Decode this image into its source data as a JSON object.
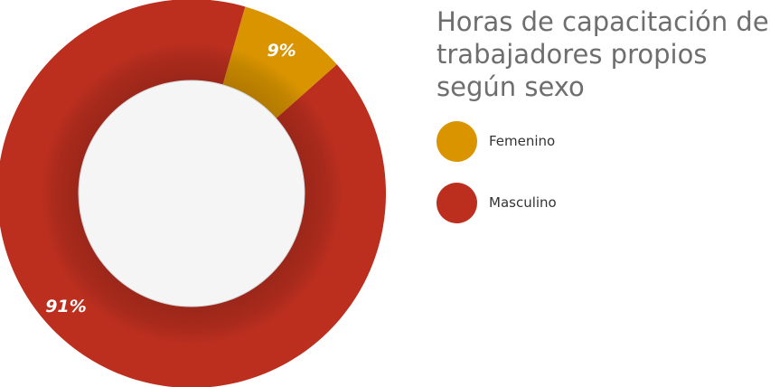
{
  "chart_data": {
    "type": "pie",
    "title": "Horas de capacitación de trabajadores propios según sexo",
    "slices": [
      {
        "name": "Femenino",
        "value": 9,
        "label": "9%",
        "color": "#d99400"
      },
      {
        "name": "Masculino",
        "value": 91,
        "label": "91%",
        "color": "#bc2f1f"
      }
    ],
    "donut": true,
    "legend_position": "right"
  },
  "colors": {
    "inner_circle": "#f5f5f5",
    "label_text": "#ffffff",
    "title_text": "#6e6e6e",
    "legend_text": "#333333"
  }
}
